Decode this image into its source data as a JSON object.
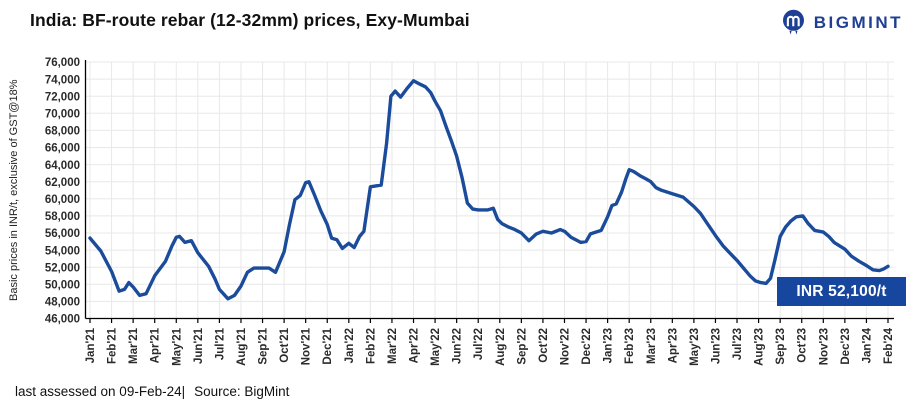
{
  "header": {
    "title": "India: BF-route rebar (12-32mm) prices, Exy-Mumbai"
  },
  "logo": {
    "text": "BIGMINT",
    "icon": "bigmint-m-circle-icon",
    "color": "#1e3f94"
  },
  "footer": {
    "assessed": "last assessed on 09-Feb-24|",
    "source": "Source: BigMint"
  },
  "colors": {
    "line": "#1b4c9b",
    "annotation_bg": "#17469e",
    "grid": "#e8e8e8",
    "axis": "#000000",
    "tick_text": "#2b2b2b"
  },
  "chart_data": {
    "type": "line",
    "title": "India: BF-route rebar (12-32mm) prices, Exy-Mumbai",
    "ylabel": "Basic prices in INR/t,  exclusive of GST@18%",
    "xlabel": "",
    "ylim": [
      46000,
      76000
    ],
    "ytick_step": 2000,
    "grid": true,
    "legend": "none",
    "annotation_label": "INR 52,100/t",
    "last_value": 52100,
    "unit": "INR/t",
    "x_labels": [
      "Jan'21",
      "Feb'21",
      "Mar'21",
      "Apr'21",
      "May'21",
      "Jun'21",
      "Jul'21",
      "Aug'21",
      "Sep'21",
      "Oct'21",
      "Nov'21",
      "Dec'21",
      "Jan'22",
      "Feb'22",
      "Mar'22",
      "Apr'22",
      "May'22",
      "Jun'22",
      "Jul'22",
      "Aug'22",
      "Sep'22",
      "Oct'22",
      "Nov'22",
      "Dec'22",
      "Jan'23",
      "Feb'23",
      "Mar'23",
      "Apr'23",
      "May'23",
      "Jun'23",
      "Jul'23",
      "Aug'23",
      "Sep'23",
      "Oct'23",
      "Nov'23",
      "Dec'23",
      "Jan'24",
      "Feb'24"
    ],
    "monthly_values": [
      55400,
      51500,
      49700,
      51000,
      55500,
      53700,
      49400,
      49800,
      51900,
      53800,
      61900,
      57000,
      54800,
      61400,
      72000,
      73800,
      71400,
      65000,
      58700,
      57200,
      56000,
      56200,
      56200,
      55000,
      57900,
      63400,
      62000,
      60600,
      59100,
      55700,
      52800,
      50200,
      55600,
      57900,
      56100,
      54100,
      52200,
      52100
    ],
    "points": [
      [
        0,
        55400
      ],
      [
        0.5,
        53900
      ],
      [
        1,
        51500
      ],
      [
        1.35,
        49200
      ],
      [
        1.6,
        49400
      ],
      [
        1.8,
        50200
      ],
      [
        2,
        49700
      ],
      [
        2.3,
        48700
      ],
      [
        2.6,
        48900
      ],
      [
        3,
        51000
      ],
      [
        3.5,
        52700
      ],
      [
        3.8,
        54500
      ],
      [
        4,
        55500
      ],
      [
        4.15,
        55600
      ],
      [
        4.4,
        54900
      ],
      [
        4.7,
        55100
      ],
      [
        5,
        53700
      ],
      [
        5.5,
        52100
      ],
      [
        5.8,
        50600
      ],
      [
        6,
        49400
      ],
      [
        6.4,
        48300
      ],
      [
        6.7,
        48700
      ],
      [
        7,
        49800
      ],
      [
        7.3,
        51400
      ],
      [
        7.6,
        51900
      ],
      [
        8.3,
        51900
      ],
      [
        8.6,
        51400
      ],
      [
        9,
        53800
      ],
      [
        9.25,
        57000
      ],
      [
        9.5,
        59900
      ],
      [
        9.75,
        60400
      ],
      [
        10,
        61900
      ],
      [
        10.15,
        62000
      ],
      [
        10.4,
        60500
      ],
      [
        10.7,
        58600
      ],
      [
        11,
        57000
      ],
      [
        11.2,
        55400
      ],
      [
        11.45,
        55200
      ],
      [
        11.7,
        54200
      ],
      [
        12,
        54800
      ],
      [
        12.25,
        54300
      ],
      [
        12.5,
        55600
      ],
      [
        12.7,
        56200
      ],
      [
        13,
        61400
      ],
      [
        13.5,
        61600
      ],
      [
        13.75,
        66500
      ],
      [
        13.95,
        72000
      ],
      [
        14.15,
        72600
      ],
      [
        14.4,
        71900
      ],
      [
        14.7,
        72900
      ],
      [
        15,
        73800
      ],
      [
        15.3,
        73400
      ],
      [
        15.55,
        73100
      ],
      [
        15.8,
        72400
      ],
      [
        16,
        71400
      ],
      [
        16.25,
        70300
      ],
      [
        16.5,
        68500
      ],
      [
        16.75,
        66800
      ],
      [
        17,
        65000
      ],
      [
        17.25,
        62500
      ],
      [
        17.5,
        59500
      ],
      [
        17.75,
        58800
      ],
      [
        18,
        58700
      ],
      [
        18.45,
        58700
      ],
      [
        18.7,
        58900
      ],
      [
        18.9,
        57600
      ],
      [
        19.1,
        57100
      ],
      [
        19.4,
        56700
      ],
      [
        19.7,
        56400
      ],
      [
        20,
        56000
      ],
      [
        20.35,
        55100
      ],
      [
        20.7,
        55900
      ],
      [
        21,
        56200
      ],
      [
        21.4,
        56000
      ],
      [
        21.8,
        56400
      ],
      [
        22,
        56200
      ],
      [
        22.3,
        55500
      ],
      [
        22.75,
        54900
      ],
      [
        23,
        55000
      ],
      [
        23.2,
        55900
      ],
      [
        23.45,
        56100
      ],
      [
        23.7,
        56300
      ],
      [
        24,
        57900
      ],
      [
        24.2,
        59200
      ],
      [
        24.4,
        59400
      ],
      [
        24.65,
        60800
      ],
      [
        24.85,
        62400
      ],
      [
        25,
        63400
      ],
      [
        25.2,
        63200
      ],
      [
        25.5,
        62700
      ],
      [
        25.8,
        62300
      ],
      [
        26,
        62000
      ],
      [
        26.25,
        61300
      ],
      [
        26.5,
        61000
      ],
      [
        27,
        60600
      ],
      [
        27.5,
        60200
      ],
      [
        28,
        59100
      ],
      [
        28.3,
        58300
      ],
      [
        28.65,
        57000
      ],
      [
        29,
        55700
      ],
      [
        29.35,
        54500
      ],
      [
        29.65,
        53700
      ],
      [
        30,
        52800
      ],
      [
        30.3,
        51900
      ],
      [
        30.6,
        51000
      ],
      [
        30.85,
        50400
      ],
      [
        31.1,
        50200
      ],
      [
        31.35,
        50100
      ],
      [
        31.55,
        50700
      ],
      [
        31.75,
        52800
      ],
      [
        32,
        55600
      ],
      [
        32.25,
        56700
      ],
      [
        32.5,
        57400
      ],
      [
        32.75,
        57900
      ],
      [
        33.05,
        58000
      ],
      [
        33.3,
        57100
      ],
      [
        33.6,
        56300
      ],
      [
        34,
        56100
      ],
      [
        34.25,
        55600
      ],
      [
        34.5,
        54900
      ],
      [
        34.75,
        54500
      ],
      [
        35,
        54100
      ],
      [
        35.3,
        53300
      ],
      [
        35.65,
        52700
      ],
      [
        36,
        52200
      ],
      [
        36.3,
        51700
      ],
      [
        36.6,
        51600
      ],
      [
        36.8,
        51800
      ],
      [
        37,
        52100
      ]
    ]
  }
}
